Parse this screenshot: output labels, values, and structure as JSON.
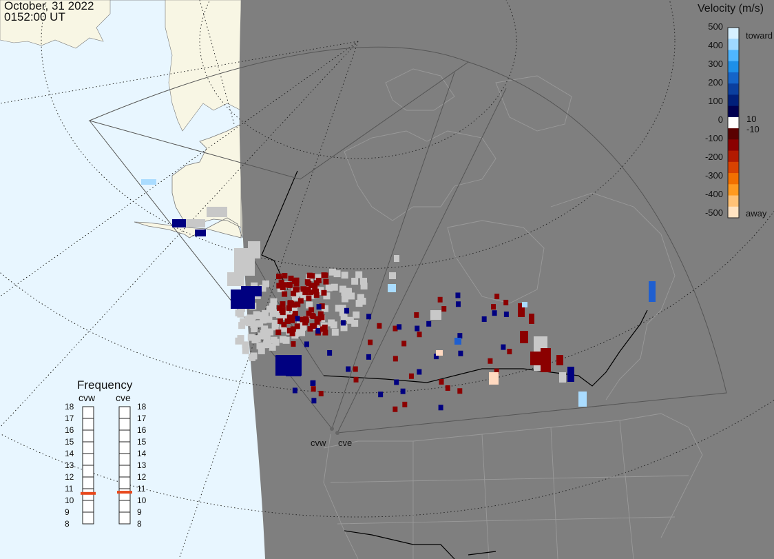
{
  "header": {
    "date": "October, 31 2022",
    "time": "0152:00 UT"
  },
  "colorbar": {
    "title": "Velocity (m/s)",
    "ticks": [
      "500",
      "400",
      "300",
      "200",
      "100",
      "0",
      "-100",
      "-200",
      "-300",
      "-400",
      "-500"
    ],
    "top_label": "toward",
    "bottom_label": "away",
    "upper_threshold": "10",
    "lower_threshold": "-10",
    "colors": [
      "#d6f0ff",
      "#9fd8ff",
      "#4fb6ff",
      "#1d8fe8",
      "#1564c8",
      "#0b3f9e",
      "#001f7a",
      "#000050",
      "#ffffff",
      "#5a0000",
      "#8b0000",
      "#b21a00",
      "#d94200",
      "#f27000",
      "#ff9a20",
      "#ffc277",
      "#ffe3c2"
    ]
  },
  "frequency": {
    "title": "Frequency",
    "radars": [
      "cvw",
      "cve"
    ],
    "scale": [
      "18",
      "17",
      "16",
      "15",
      "14",
      "13",
      "12",
      "11",
      "10",
      "9",
      "8"
    ],
    "cvw_mhz": 10.6,
    "cve_mhz": 10.7,
    "marker_color": "#e8481c"
  },
  "radar_sites": [
    "cvw",
    "cve"
  ],
  "map_colors": {
    "ocean": "#e8f6ff",
    "land_lit": "#f8f6e4",
    "night": "#7f7f7f",
    "gate_gray": "#c8c8c8"
  }
}
